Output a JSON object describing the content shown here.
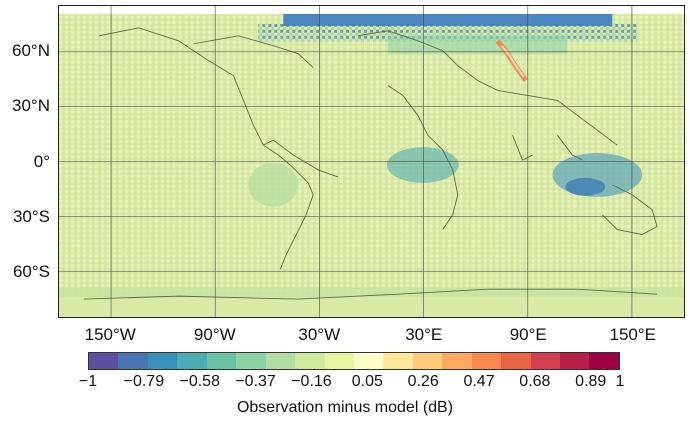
{
  "map": {
    "lat_labels": [
      "60°N",
      "30°N",
      "0°",
      "30°S",
      "60°S"
    ],
    "lon_labels": [
      "150°W",
      "90°W",
      "30°W",
      "30°E",
      "90°E",
      "150°E"
    ],
    "lat_values": [
      60,
      30,
      0,
      -30,
      -60
    ],
    "lon_values": [
      -150,
      -90,
      -30,
      30,
      90,
      150
    ],
    "extent": {
      "lon": [
        -180,
        180
      ],
      "lat": [
        -85,
        85
      ]
    },
    "grid_lines": true
  },
  "colorbar": {
    "colors": [
      "#5e4fa2",
      "#4a74b4",
      "#3891bb",
      "#4cacb2",
      "#68c3a5",
      "#8dd2a4",
      "#afdda2",
      "#cfea9d",
      "#e8f5a0",
      "#fcfdc7",
      "#fde89a",
      "#fdcb7a",
      "#fca85e",
      "#f68a4b",
      "#ea6544",
      "#d53e4f",
      "#b81e4a",
      "#9e0142"
    ],
    "tick_labels": [
      "−1",
      "−0.79",
      "−0.58",
      "−0.37",
      "−0.16",
      "0.05",
      "0.26",
      "0.47",
      "0.68",
      "0.89",
      "1"
    ],
    "tick_values": [
      -1,
      -0.79,
      -0.58,
      -0.37,
      -0.16,
      0.05,
      0.26,
      0.47,
      0.68,
      0.89,
      1
    ],
    "range": [
      -1,
      1
    ],
    "title": "Observation minus model (dB)"
  }
}
